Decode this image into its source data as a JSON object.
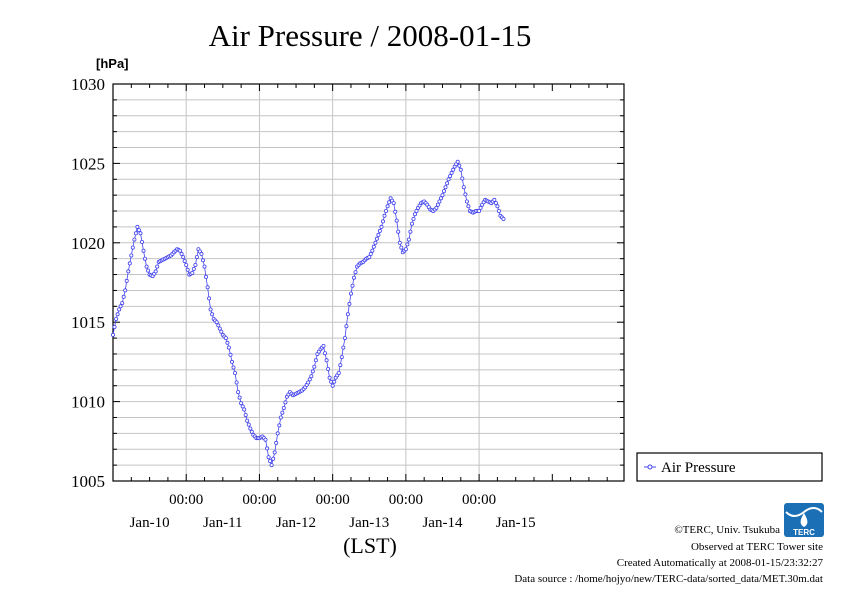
{
  "chart_data": {
    "type": "line",
    "title": "Air Pressure / 2008-01-15",
    "y_unit": "[hPa]",
    "xlabel": "(LST)",
    "ylim": [
      1005,
      1030
    ],
    "xlim": [
      "2008-01-09 00:00",
      "2008-01-15 23:30"
    ],
    "y_ticks": [
      "1005",
      "1010",
      "1015",
      "1020",
      "1025",
      "1030"
    ],
    "x_tick_time_labels": [
      "00:00",
      "00:00",
      "00:00",
      "00:00",
      "00:00"
    ],
    "x_day_labels": [
      "Jan-10",
      "Jan-11",
      "Jan-12",
      "Jan-13",
      "Jan-14",
      "Jan-15"
    ],
    "grid": true,
    "legend_position": "right",
    "series": [
      {
        "name": "Air Pressure",
        "color": "#4444ee",
        "points": [
          [
            "2008-01-09 00:00",
            1014.2
          ],
          [
            "2008-01-09 01:00",
            1015.2
          ],
          [
            "2008-01-09 02:00",
            1015.8
          ],
          [
            "2008-01-09 03:00",
            1016.2
          ],
          [
            "2008-01-09 04:00",
            1017.0
          ],
          [
            "2008-01-09 05:00",
            1018.2
          ],
          [
            "2008-01-09 06:00",
            1019.2
          ],
          [
            "2008-01-09 07:00",
            1020.2
          ],
          [
            "2008-01-09 08:00",
            1021.0
          ],
          [
            "2008-01-09 09:00",
            1020.6
          ],
          [
            "2008-01-09 10:00",
            1019.5
          ],
          [
            "2008-01-09 11:00",
            1018.5
          ],
          [
            "2008-01-09 12:00",
            1018.0
          ],
          [
            "2008-01-09 13:00",
            1017.9
          ],
          [
            "2008-01-09 14:00",
            1018.2
          ],
          [
            "2008-01-09 15:00",
            1018.8
          ],
          [
            "2008-01-09 16:00",
            1018.9
          ],
          [
            "2008-01-09 17:00",
            1019.0
          ],
          [
            "2008-01-09 18:00",
            1019.1
          ],
          [
            "2008-01-09 19:00",
            1019.2
          ],
          [
            "2008-01-09 20:00",
            1019.4
          ],
          [
            "2008-01-09 21:00",
            1019.6
          ],
          [
            "2008-01-09 22:00",
            1019.5
          ],
          [
            "2008-01-09 23:00",
            1019.1
          ],
          [
            "2008-01-10 00:00",
            1018.6
          ],
          [
            "2008-01-10 01:00",
            1018.0
          ],
          [
            "2008-01-10 02:00",
            1018.1
          ],
          [
            "2008-01-10 03:00",
            1018.6
          ],
          [
            "2008-01-10 04:00",
            1019.6
          ],
          [
            "2008-01-10 05:00",
            1019.3
          ],
          [
            "2008-01-10 06:00",
            1018.5
          ],
          [
            "2008-01-10 07:00",
            1017.2
          ],
          [
            "2008-01-10 08:00",
            1015.8
          ],
          [
            "2008-01-10 09:00",
            1015.2
          ],
          [
            "2008-01-10 10:00",
            1015.0
          ],
          [
            "2008-01-10 11:00",
            1014.6
          ],
          [
            "2008-01-10 12:00",
            1014.2
          ],
          [
            "2008-01-10 13:00",
            1014.0
          ],
          [
            "2008-01-10 14:00",
            1013.4
          ],
          [
            "2008-01-10 15:00",
            1012.5
          ],
          [
            "2008-01-10 16:00",
            1011.8
          ],
          [
            "2008-01-10 17:00",
            1010.6
          ],
          [
            "2008-01-10 18:00",
            1009.9
          ],
          [
            "2008-01-10 19:00",
            1009.5
          ],
          [
            "2008-01-10 20:00",
            1008.8
          ],
          [
            "2008-01-10 21:00",
            1008.3
          ],
          [
            "2008-01-10 22:00",
            1007.9
          ],
          [
            "2008-01-10 23:00",
            1007.7
          ],
          [
            "2008-01-11 00:00",
            1007.7
          ],
          [
            "2008-01-11 01:00",
            1007.8
          ],
          [
            "2008-01-11 02:00",
            1007.6
          ],
          [
            "2008-01-11 03:00",
            1006.5
          ],
          [
            "2008-01-11 04:00",
            1006.0
          ],
          [
            "2008-01-11 05:00",
            1006.8
          ],
          [
            "2008-01-11 06:00",
            1008.0
          ],
          [
            "2008-01-11 07:00",
            1009.0
          ],
          [
            "2008-01-11 08:00",
            1009.6
          ],
          [
            "2008-01-11 09:00",
            1010.3
          ],
          [
            "2008-01-11 10:00",
            1010.6
          ],
          [
            "2008-01-11 11:00",
            1010.4
          ],
          [
            "2008-01-11 12:00",
            1010.5
          ],
          [
            "2008-01-11 13:00",
            1010.6
          ],
          [
            "2008-01-11 14:00",
            1010.7
          ],
          [
            "2008-01-11 15:00",
            1010.9
          ],
          [
            "2008-01-11 16:00",
            1011.2
          ],
          [
            "2008-01-11 17:00",
            1011.6
          ],
          [
            "2008-01-11 18:00",
            1012.2
          ],
          [
            "2008-01-11 19:00",
            1013.0
          ],
          [
            "2008-01-11 20:00",
            1013.3
          ],
          [
            "2008-01-11 21:00",
            1013.5
          ],
          [
            "2008-01-11 22:00",
            1012.6
          ],
          [
            "2008-01-11 23:00",
            1011.5
          ],
          [
            "2008-01-12 00:00",
            1011.0
          ],
          [
            "2008-01-12 01:00",
            1011.5
          ],
          [
            "2008-01-12 02:00",
            1011.8
          ],
          [
            "2008-01-12 03:00",
            1012.8
          ],
          [
            "2008-01-12 04:00",
            1014.0
          ],
          [
            "2008-01-12 05:00",
            1015.5
          ],
          [
            "2008-01-12 06:00",
            1016.8
          ],
          [
            "2008-01-12 07:00",
            1017.8
          ],
          [
            "2008-01-12 08:00",
            1018.5
          ],
          [
            "2008-01-12 09:00",
            1018.7
          ],
          [
            "2008-01-12 10:00",
            1018.8
          ],
          [
            "2008-01-12 11:00",
            1019.0
          ],
          [
            "2008-01-12 12:00",
            1019.1
          ],
          [
            "2008-01-12 13:00",
            1019.5
          ],
          [
            "2008-01-12 14:00",
            1020.0
          ],
          [
            "2008-01-12 15:00",
            1020.5
          ],
          [
            "2008-01-12 16:00",
            1021.0
          ],
          [
            "2008-01-12 17:00",
            1021.7
          ],
          [
            "2008-01-12 18:00",
            1022.3
          ],
          [
            "2008-01-12 19:00",
            1022.8
          ],
          [
            "2008-01-12 20:00",
            1022.5
          ],
          [
            "2008-01-12 21:00",
            1021.4
          ],
          [
            "2008-01-12 22:00",
            1020.0
          ],
          [
            "2008-01-12 23:00",
            1019.4
          ],
          [
            "2008-01-13 00:00",
            1019.6
          ],
          [
            "2008-01-13 01:00",
            1020.2
          ],
          [
            "2008-01-13 02:00",
            1021.2
          ],
          [
            "2008-01-13 03:00",
            1021.8
          ],
          [
            "2008-01-13 04:00",
            1022.2
          ],
          [
            "2008-01-13 05:00",
            1022.5
          ],
          [
            "2008-01-13 06:00",
            1022.6
          ],
          [
            "2008-01-13 07:00",
            1022.4
          ],
          [
            "2008-01-13 08:00",
            1022.1
          ],
          [
            "2008-01-13 09:00",
            1022.0
          ],
          [
            "2008-01-13 10:00",
            1022.2
          ],
          [
            "2008-01-13 11:00",
            1022.6
          ],
          [
            "2008-01-13 12:00",
            1023.0
          ],
          [
            "2008-01-13 13:00",
            1023.5
          ],
          [
            "2008-01-13 14:00",
            1024.0
          ],
          [
            "2008-01-13 15:00",
            1024.4
          ],
          [
            "2008-01-13 16:00",
            1024.8
          ],
          [
            "2008-01-13 17:00",
            1025.1
          ],
          [
            "2008-01-13 18:00",
            1024.6
          ],
          [
            "2008-01-13 19:00",
            1023.5
          ],
          [
            "2008-01-13 20:00",
            1022.6
          ],
          [
            "2008-01-13 21:00",
            1022.0
          ],
          [
            "2008-01-13 22:00",
            1021.9
          ],
          [
            "2008-01-13 23:00",
            1022.0
          ],
          [
            "2008-01-14 00:00",
            1022.0
          ],
          [
            "2008-01-14 01:00",
            1022.4
          ],
          [
            "2008-01-14 02:00",
            1022.7
          ],
          [
            "2008-01-14 03:00",
            1022.6
          ],
          [
            "2008-01-14 04:00",
            1022.5
          ],
          [
            "2008-01-14 05:00",
            1022.7
          ],
          [
            "2008-01-14 06:00",
            1022.3
          ],
          [
            "2008-01-14 07:00",
            1021.7
          ],
          [
            "2008-01-14 08:00",
            1021.5
          ]
        ]
      }
    ]
  },
  "footer": {
    "copyright": "©TERC, Univ. Tsukuba",
    "observed": "Observed at TERC Tower site",
    "created": "Created Automatically at 2008-01-15/23:32:27",
    "source": "Data source : /home/hojyo/new/TERC-data/sorted_data/MET.30m.dat"
  },
  "logo": {
    "text": "TERC",
    "color": "#1a6fb5"
  }
}
